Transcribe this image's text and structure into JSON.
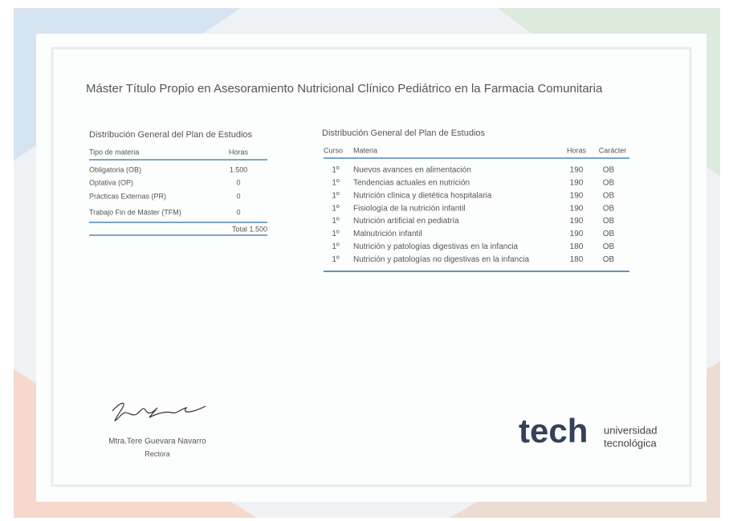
{
  "header": {
    "title": "Máster Título Propio en Asesoramiento Nutricional Clínico Pediátrico en la Farmacia Comunitaria"
  },
  "left_table": {
    "title": "Distribución General del Plan de Estudios",
    "columns": [
      "Tipo de materia",
      "Horas"
    ],
    "rows": [
      [
        "Obligatoria (OB)",
        "1.500"
      ],
      [
        "Optativa (OP)",
        "0"
      ],
      [
        "Prácticas Externas (PR)",
        "0"
      ],
      [
        "Trabajo Fin de Máster (TFM)",
        "0"
      ]
    ],
    "total": "Total 1.500"
  },
  "right_table": {
    "title": "Distribución General del Plan de Estudios",
    "columns": [
      "Curso",
      "Materia",
      "Horas",
      "Carácter"
    ],
    "rows": [
      [
        "1º",
        "Nuevos avances en alimentación",
        "190",
        "OB"
      ],
      [
        "1º",
        "Tendencias actuales en nutrición",
        "190",
        "OB"
      ],
      [
        "1º",
        "Nutrición clínica y dietética hospitalaria",
        "190",
        "OB"
      ],
      [
        "1º",
        "Fisiología de la nutrición infantil",
        "190",
        "OB"
      ],
      [
        "1º",
        "Nutrición artificial en pediatría",
        "190",
        "OB"
      ],
      [
        "1º",
        "Malnutrición infantil",
        "190",
        "OB"
      ],
      [
        "1º",
        "Nutrición y patologías digestivas en la infancia",
        "180",
        "OB"
      ],
      [
        "1º",
        "Nutrición y patologías no digestivas en la infancia",
        "180",
        "OB"
      ]
    ]
  },
  "signature": {
    "name": "Mtra.Tere Guevara Navarro",
    "role": "Rectora"
  },
  "logo": {
    "word": "tech",
    "line1": "universidad",
    "line2": "tecnológica"
  }
}
